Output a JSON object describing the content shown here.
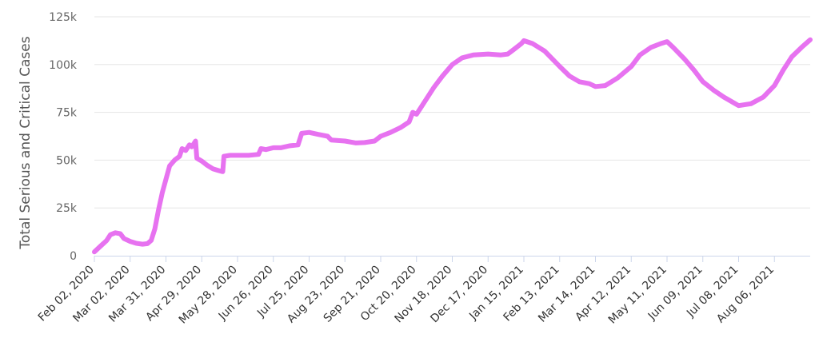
{
  "chart_data": {
    "type": "line",
    "title": "",
    "xlabel": "",
    "ylabel": "Total Serious and Critical Cases",
    "ylim": [
      0,
      125000
    ],
    "yticks": [
      0,
      25000,
      50000,
      75000,
      100000,
      125000
    ],
    "ytick_labels": [
      "0",
      "25k",
      "50k",
      "75k",
      "100k",
      "125k"
    ],
    "xlim": [
      "2020-02-02",
      "2021-09-04"
    ],
    "xtick_labels": [
      "Feb 02, 2020",
      "Mar 02, 2020",
      "Mar 31, 2020",
      "Apr 29, 2020",
      "May 28, 2020",
      "Jun 26, 2020",
      "Jul 25, 2020",
      "Aug 23, 2020",
      "Sep 21, 2020",
      "Oct 20, 2020",
      "Nov 18, 2020",
      "Dec 17, 2020",
      "Jan 15, 2021",
      "Feb 13, 2021",
      "Mar 14, 2021",
      "Apr 12, 2021",
      "May 11, 2021",
      "Jun 09, 2021",
      "Jul 08, 2021",
      "Aug 06, 2021"
    ],
    "xtick_dates": [
      "2020-02-02",
      "2020-03-02",
      "2020-03-31",
      "2020-04-29",
      "2020-05-28",
      "2020-06-26",
      "2020-07-25",
      "2020-08-23",
      "2020-09-21",
      "2020-10-20",
      "2020-11-18",
      "2020-12-17",
      "2021-01-15",
      "2021-02-13",
      "2021-03-14",
      "2021-04-12",
      "2021-05-11",
      "2021-06-09",
      "2021-07-08",
      "2021-08-06"
    ],
    "grid": true,
    "legend": "none",
    "series": [
      {
        "color": "#e772f0",
        "points": [
          [
            "2020-02-02",
            2000
          ],
          [
            "2020-02-07",
            5000
          ],
          [
            "2020-02-12",
            8000
          ],
          [
            "2020-02-15",
            11000
          ],
          [
            "2020-02-19",
            12000
          ],
          [
            "2020-02-23",
            11500
          ],
          [
            "2020-02-26",
            9000
          ],
          [
            "2020-03-02",
            7500
          ],
          [
            "2020-03-07",
            6500
          ],
          [
            "2020-03-12",
            6000
          ],
          [
            "2020-03-16",
            6300
          ],
          [
            "2020-03-19",
            8000
          ],
          [
            "2020-03-22",
            14000
          ],
          [
            "2020-03-25",
            24000
          ],
          [
            "2020-03-28",
            33000
          ],
          [
            "2020-03-31",
            40000
          ],
          [
            "2020-04-03",
            47000
          ],
          [
            "2020-04-07",
            50000
          ],
          [
            "2020-04-11",
            52000
          ],
          [
            "2020-04-13",
            56000
          ],
          [
            "2020-04-16",
            55000
          ],
          [
            "2020-04-19",
            58000
          ],
          [
            "2020-04-21",
            57000
          ],
          [
            "2020-04-24",
            60000
          ],
          [
            "2020-04-25",
            51000
          ],
          [
            "2020-04-29",
            49500
          ],
          [
            "2020-05-03",
            47500
          ],
          [
            "2020-05-08",
            45500
          ],
          [
            "2020-05-13",
            44500
          ],
          [
            "2020-05-16",
            44000
          ],
          [
            "2020-05-17",
            52000
          ],
          [
            "2020-05-22",
            52500
          ],
          [
            "2020-05-28",
            52500
          ],
          [
            "2020-06-06",
            52500
          ],
          [
            "2020-06-14",
            53000
          ],
          [
            "2020-06-16",
            56000
          ],
          [
            "2020-06-20",
            55500
          ],
          [
            "2020-06-26",
            56500
          ],
          [
            "2020-07-02",
            56500
          ],
          [
            "2020-07-09",
            57500
          ],
          [
            "2020-07-16",
            58000
          ],
          [
            "2020-07-19",
            64000
          ],
          [
            "2020-07-25",
            64500
          ],
          [
            "2020-08-01",
            63500
          ],
          [
            "2020-08-09",
            62500
          ],
          [
            "2020-08-12",
            60500
          ],
          [
            "2020-08-23",
            60000
          ],
          [
            "2020-09-01",
            59000
          ],
          [
            "2020-09-08",
            59200
          ],
          [
            "2020-09-16",
            60000
          ],
          [
            "2020-09-21",
            62500
          ],
          [
            "2020-09-29",
            64500
          ],
          [
            "2020-10-07",
            67000
          ],
          [
            "2020-10-14",
            70000
          ],
          [
            "2020-10-17",
            75000
          ],
          [
            "2020-10-20",
            74000
          ],
          [
            "2020-10-27",
            81000
          ],
          [
            "2020-11-03",
            88000
          ],
          [
            "2020-11-10",
            94000
          ],
          [
            "2020-11-18",
            100000
          ],
          [
            "2020-11-26",
            103500
          ],
          [
            "2020-12-05",
            105000
          ],
          [
            "2020-12-17",
            105500
          ],
          [
            "2020-12-27",
            105000
          ],
          [
            "2021-01-02",
            105500
          ],
          [
            "2021-01-07",
            108000
          ],
          [
            "2021-01-13",
            111000
          ],
          [
            "2021-01-15",
            112500
          ],
          [
            "2021-01-22",
            111000
          ],
          [
            "2021-02-01",
            107000
          ],
          [
            "2021-02-13",
            99000
          ],
          [
            "2021-02-21",
            94000
          ],
          [
            "2021-03-01",
            91000
          ],
          [
            "2021-03-09",
            90000
          ],
          [
            "2021-03-14",
            88500
          ],
          [
            "2021-03-22",
            89000
          ],
          [
            "2021-04-01",
            93000
          ],
          [
            "2021-04-12",
            99000
          ],
          [
            "2021-04-19",
            105000
          ],
          [
            "2021-04-28",
            109000
          ],
          [
            "2021-05-06",
            111000
          ],
          [
            "2021-05-11",
            112000
          ],
          [
            "2021-05-16",
            109000
          ],
          [
            "2021-05-25",
            103000
          ],
          [
            "2021-06-02",
            97000
          ],
          [
            "2021-06-09",
            91000
          ],
          [
            "2021-06-18",
            86500
          ],
          [
            "2021-06-26",
            83000
          ],
          [
            "2021-07-04",
            80000
          ],
          [
            "2021-07-08",
            78500
          ],
          [
            "2021-07-18",
            79500
          ],
          [
            "2021-07-28",
            83000
          ],
          [
            "2021-08-06",
            89000
          ],
          [
            "2021-08-13",
            97000
          ],
          [
            "2021-08-20",
            104000
          ],
          [
            "2021-08-28",
            109000
          ],
          [
            "2021-09-04",
            113000
          ]
        ]
      }
    ]
  }
}
